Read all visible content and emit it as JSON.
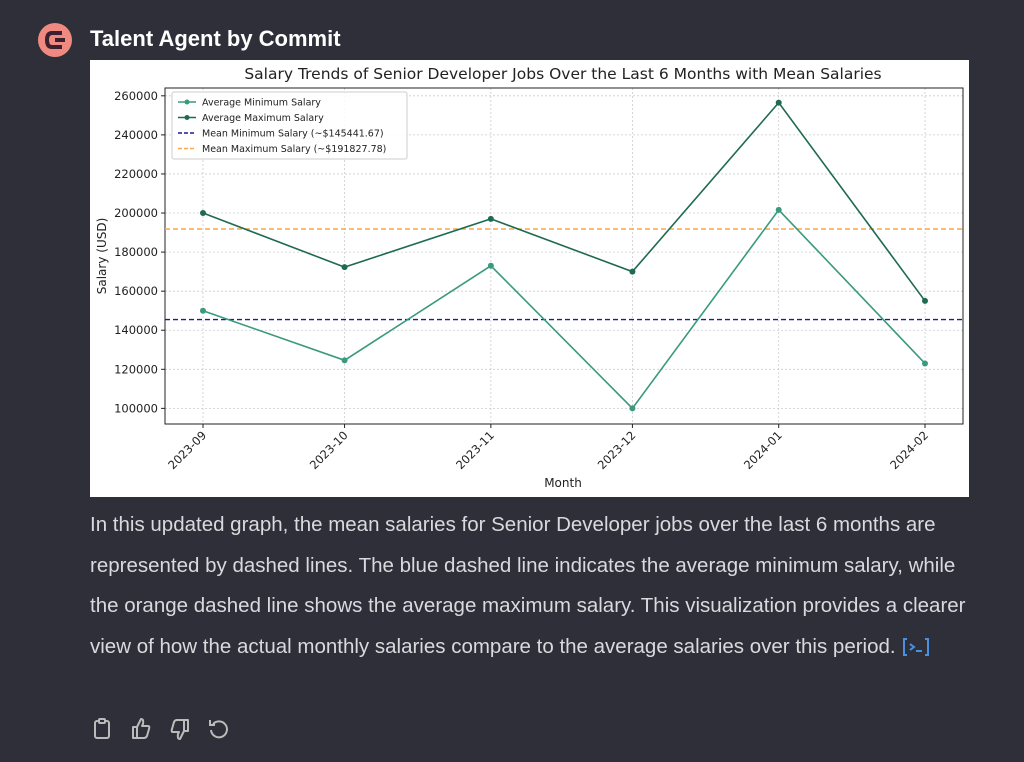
{
  "header": {
    "name": "Talent Agent by Commit"
  },
  "chart_data": {
    "type": "line",
    "title": "Salary Trends of Senior Developer Jobs Over the Last 6 Months with Mean Salaries",
    "x_label": "Month",
    "y_label": "Salary (USD)",
    "x": [
      "2023-09",
      "2023-10",
      "2023-11",
      "2023-12",
      "2024-01",
      "2024-02"
    ],
    "series": [
      {
        "name": "Average Minimum Salary",
        "color": "#3a9a7e",
        "values": [
          150000,
          124600,
          173000,
          100000,
          201600,
          123000
        ]
      },
      {
        "name": "Average Maximum Salary",
        "color": "#1e6b4f",
        "values": [
          200000,
          172300,
          197000,
          170000,
          256500,
          155000
        ]
      }
    ],
    "hlines": [
      {
        "name": "Mean Minimum Salary (~$145441.67)",
        "color": "#1a1a9a",
        "value": 145441.67
      },
      {
        "name": "Mean Maximum Salary (~$191827.78)",
        "color": "#f5a94a",
        "value": 191827.78
      }
    ],
    "ylim": [
      92000,
      264000
    ],
    "yticks": [
      100000,
      120000,
      140000,
      160000,
      180000,
      200000,
      220000,
      240000,
      260000
    ],
    "grid": true,
    "legend": "upper left"
  },
  "message": {
    "text": "In this updated graph, the mean salaries for Senior Developer jobs over the last 6 months are represented by dashed lines. The blue dashed line indicates the average minimum salary, while the orange dashed line shows the average maximum salary. This visualization provides a clearer view of how the actual monthly salaries compare to the average salaries over this period."
  }
}
